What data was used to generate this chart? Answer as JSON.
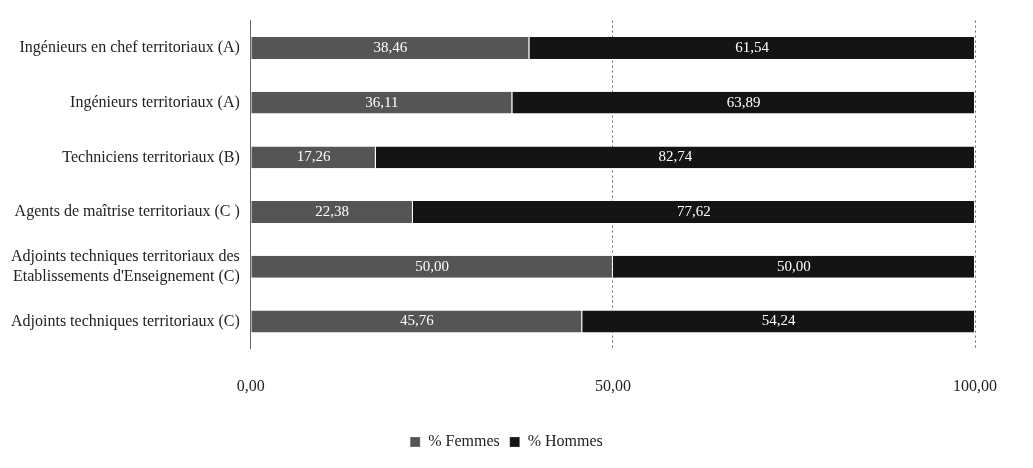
{
  "chart_data": {
    "type": "bar",
    "orientation": "horizontal",
    "stacked": true,
    "categories": [
      "Ingénieurs en chef territoriaux (A)",
      "Ingénieurs territoriaux (A)",
      "Techniciens territoriaux (B)",
      "Agents de maîtrise territoriaux (C )",
      "Adjoints techniques territoriaux des Etablissements d'Enseignement (C)",
      "Adjoints techniques territoriaux (C)"
    ],
    "series": [
      {
        "name": "% Femmes",
        "color": "#555555",
        "values": [
          38.46,
          36.11,
          17.26,
          22.38,
          50.0,
          45.76
        ],
        "value_labels": [
          "38,46",
          "36,11",
          "17,26",
          "22,38",
          "50,00",
          "45,76"
        ]
      },
      {
        "name": "% Hommes",
        "color": "#141414",
        "values": [
          61.54,
          63.89,
          82.74,
          77.62,
          50.0,
          54.24
        ],
        "value_labels": [
          "61,54",
          "63,89",
          "82,74",
          "77,62",
          "50,00",
          "54,24"
        ]
      }
    ],
    "xlim": [
      0,
      100
    ],
    "xticks": [
      {
        "value": 0,
        "label": "0,00"
      },
      {
        "value": 50,
        "label": "50,00"
      },
      {
        "value": 100,
        "label": "100,00"
      }
    ],
    "grid": "x",
    "legend": "bottom"
  }
}
